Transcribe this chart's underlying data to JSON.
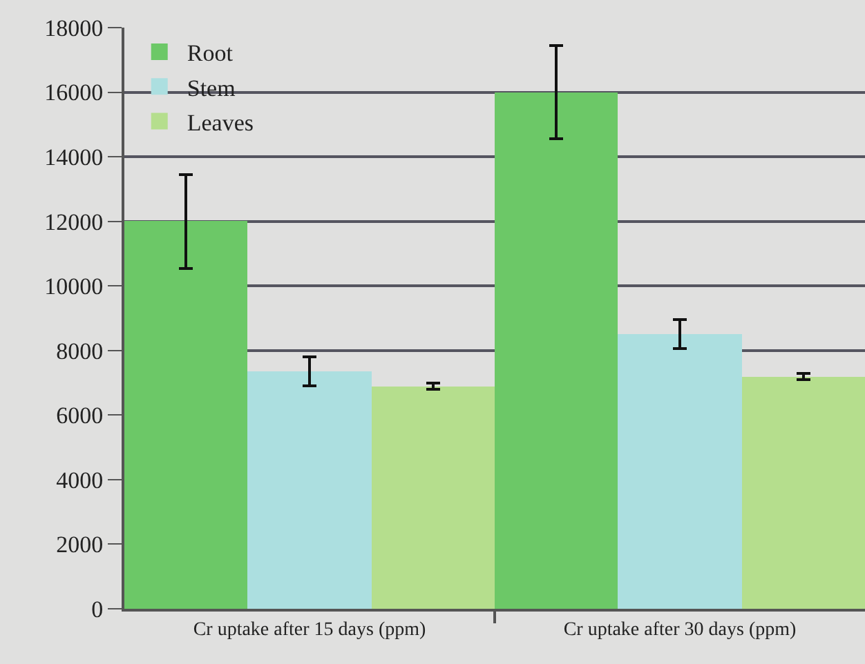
{
  "chart_data": {
    "type": "bar",
    "categories": [
      "Cr uptake after 15 days (ppm)",
      "Cr uptake after 30 days (ppm)"
    ],
    "series": [
      {
        "name": "Root",
        "color": "#6cc867",
        "values": [
          12000,
          16000
        ],
        "errors": [
          1450,
          1450
        ]
      },
      {
        "name": "Stem",
        "color": "#acdfe0",
        "values": [
          7350,
          8500
        ],
        "errors": [
          450,
          450
        ]
      },
      {
        "name": "Leaves",
        "color": "#b5de8d",
        "values": [
          6900,
          7200
        ],
        "errors": [
          100,
          100
        ]
      }
    ],
    "ylim": [
      0,
      18000
    ],
    "yticks": [
      0,
      2000,
      4000,
      6000,
      8000,
      10000,
      12000,
      14000,
      16000,
      18000
    ],
    "grid": "y",
    "legend": "top left"
  }
}
